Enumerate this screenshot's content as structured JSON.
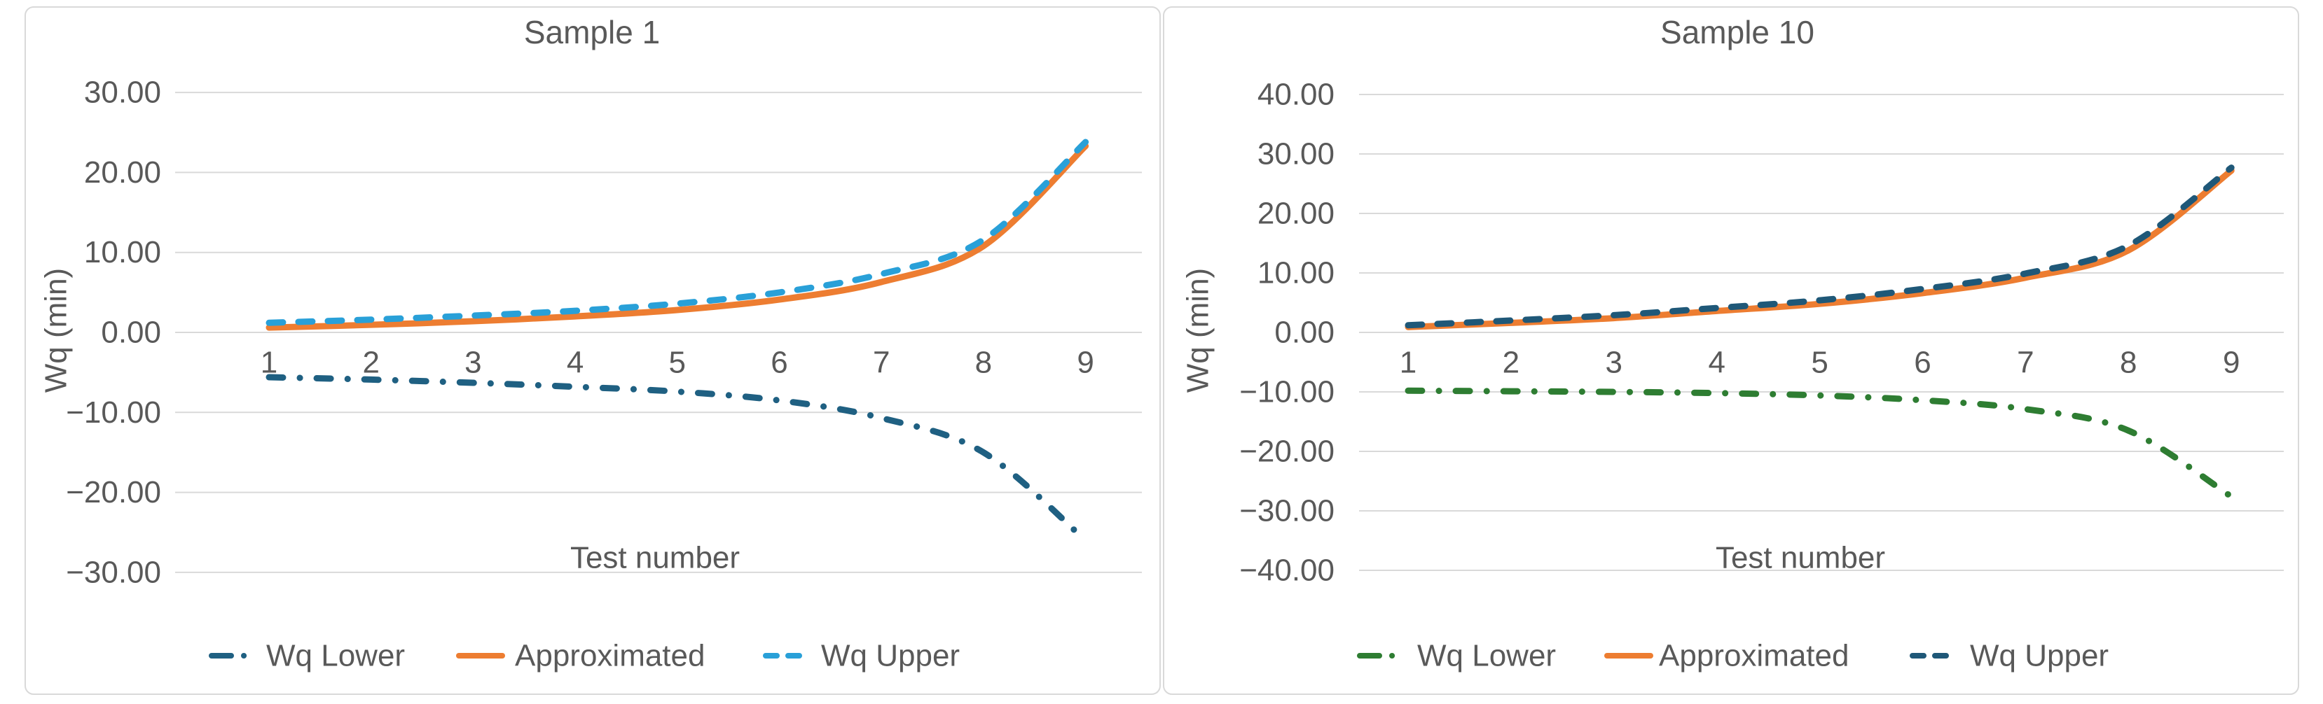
{
  "page": {
    "background": "#FFFFFF",
    "text_color": "#595959",
    "gridline_color": "#D9D9D9",
    "panel_border_color": "#D9D9D9"
  },
  "chart_data": [
    {
      "type": "line",
      "title": "Sample 1",
      "xlabel": "Test number",
      "ylabel": "Wq (min)",
      "x": [
        1,
        2,
        3,
        4,
        5,
        6,
        7,
        8,
        9
      ],
      "xtick_labels": [
        "1",
        "2",
        "3",
        "4",
        "5",
        "6",
        "7",
        "8",
        "9"
      ],
      "ylim": [
        -30,
        30
      ],
      "yticks": [
        30,
        20,
        10,
        0,
        -10,
        -20,
        -30
      ],
      "ytick_labels": [
        "30.00",
        "20.00",
        "10.00",
        "0.00",
        "−10.00",
        "−20.00",
        "−30.00"
      ],
      "grid": true,
      "legend_position": "bottom",
      "series": [
        {
          "name": "Wq Lower",
          "color": "#1F6082",
          "line_style": "dash_dot",
          "values": [
            -5.6,
            -5.9,
            -6.3,
            -6.8,
            -7.4,
            -8.5,
            -10.7,
            -15.0,
            -26.0
          ]
        },
        {
          "name": "Approximated",
          "color": "#ED7D31",
          "line_style": "solid",
          "values": [
            0.6,
            0.95,
            1.4,
            2.0,
            2.8,
            4.1,
            6.3,
            10.8,
            23.3
          ]
        },
        {
          "name": "Wq Upper",
          "color": "#29A0D8",
          "line_style": "dashed",
          "values": [
            1.2,
            1.6,
            2.1,
            2.7,
            3.6,
            5.0,
            7.3,
            11.6,
            23.8
          ]
        }
      ]
    },
    {
      "type": "line",
      "title": "Sample 10",
      "xlabel": "Test number",
      "ylabel": "Wq (min)",
      "x": [
        1,
        2,
        3,
        4,
        5,
        6,
        7,
        8,
        9
      ],
      "xtick_labels": [
        "1",
        "2",
        "3",
        "4",
        "5",
        "6",
        "7",
        "8",
        "9"
      ],
      "ylim": [
        -40,
        40
      ],
      "yticks": [
        40,
        30,
        20,
        10,
        0,
        -10,
        -20,
        -30,
        -40
      ],
      "ytick_labels": [
        "40.00",
        "30.00",
        "20.00",
        "10.00",
        "0.00",
        "−10.00",
        "−20.00",
        "−30.00",
        "−40.00"
      ],
      "grid": true,
      "legend_position": "bottom",
      "series": [
        {
          "name": "Wq Lower",
          "color": "#2E7D32",
          "line_style": "dash_dot",
          "values": [
            -9.8,
            -9.9,
            -10.0,
            -10.2,
            -10.6,
            -11.4,
            -12.9,
            -16.5,
            -27.6
          ]
        },
        {
          "name": "Approximated",
          "color": "#ED7D31",
          "line_style": "solid",
          "values": [
            0.9,
            1.6,
            2.4,
            3.6,
            4.8,
            6.6,
            9.2,
            13.8,
            27.2
          ]
        },
        {
          "name": "Wq Upper",
          "color": "#1F5878",
          "line_style": "dashed",
          "values": [
            1.2,
            2.0,
            2.9,
            4.1,
            5.4,
            7.3,
            9.9,
            14.6,
            27.7
          ]
        }
      ]
    }
  ]
}
